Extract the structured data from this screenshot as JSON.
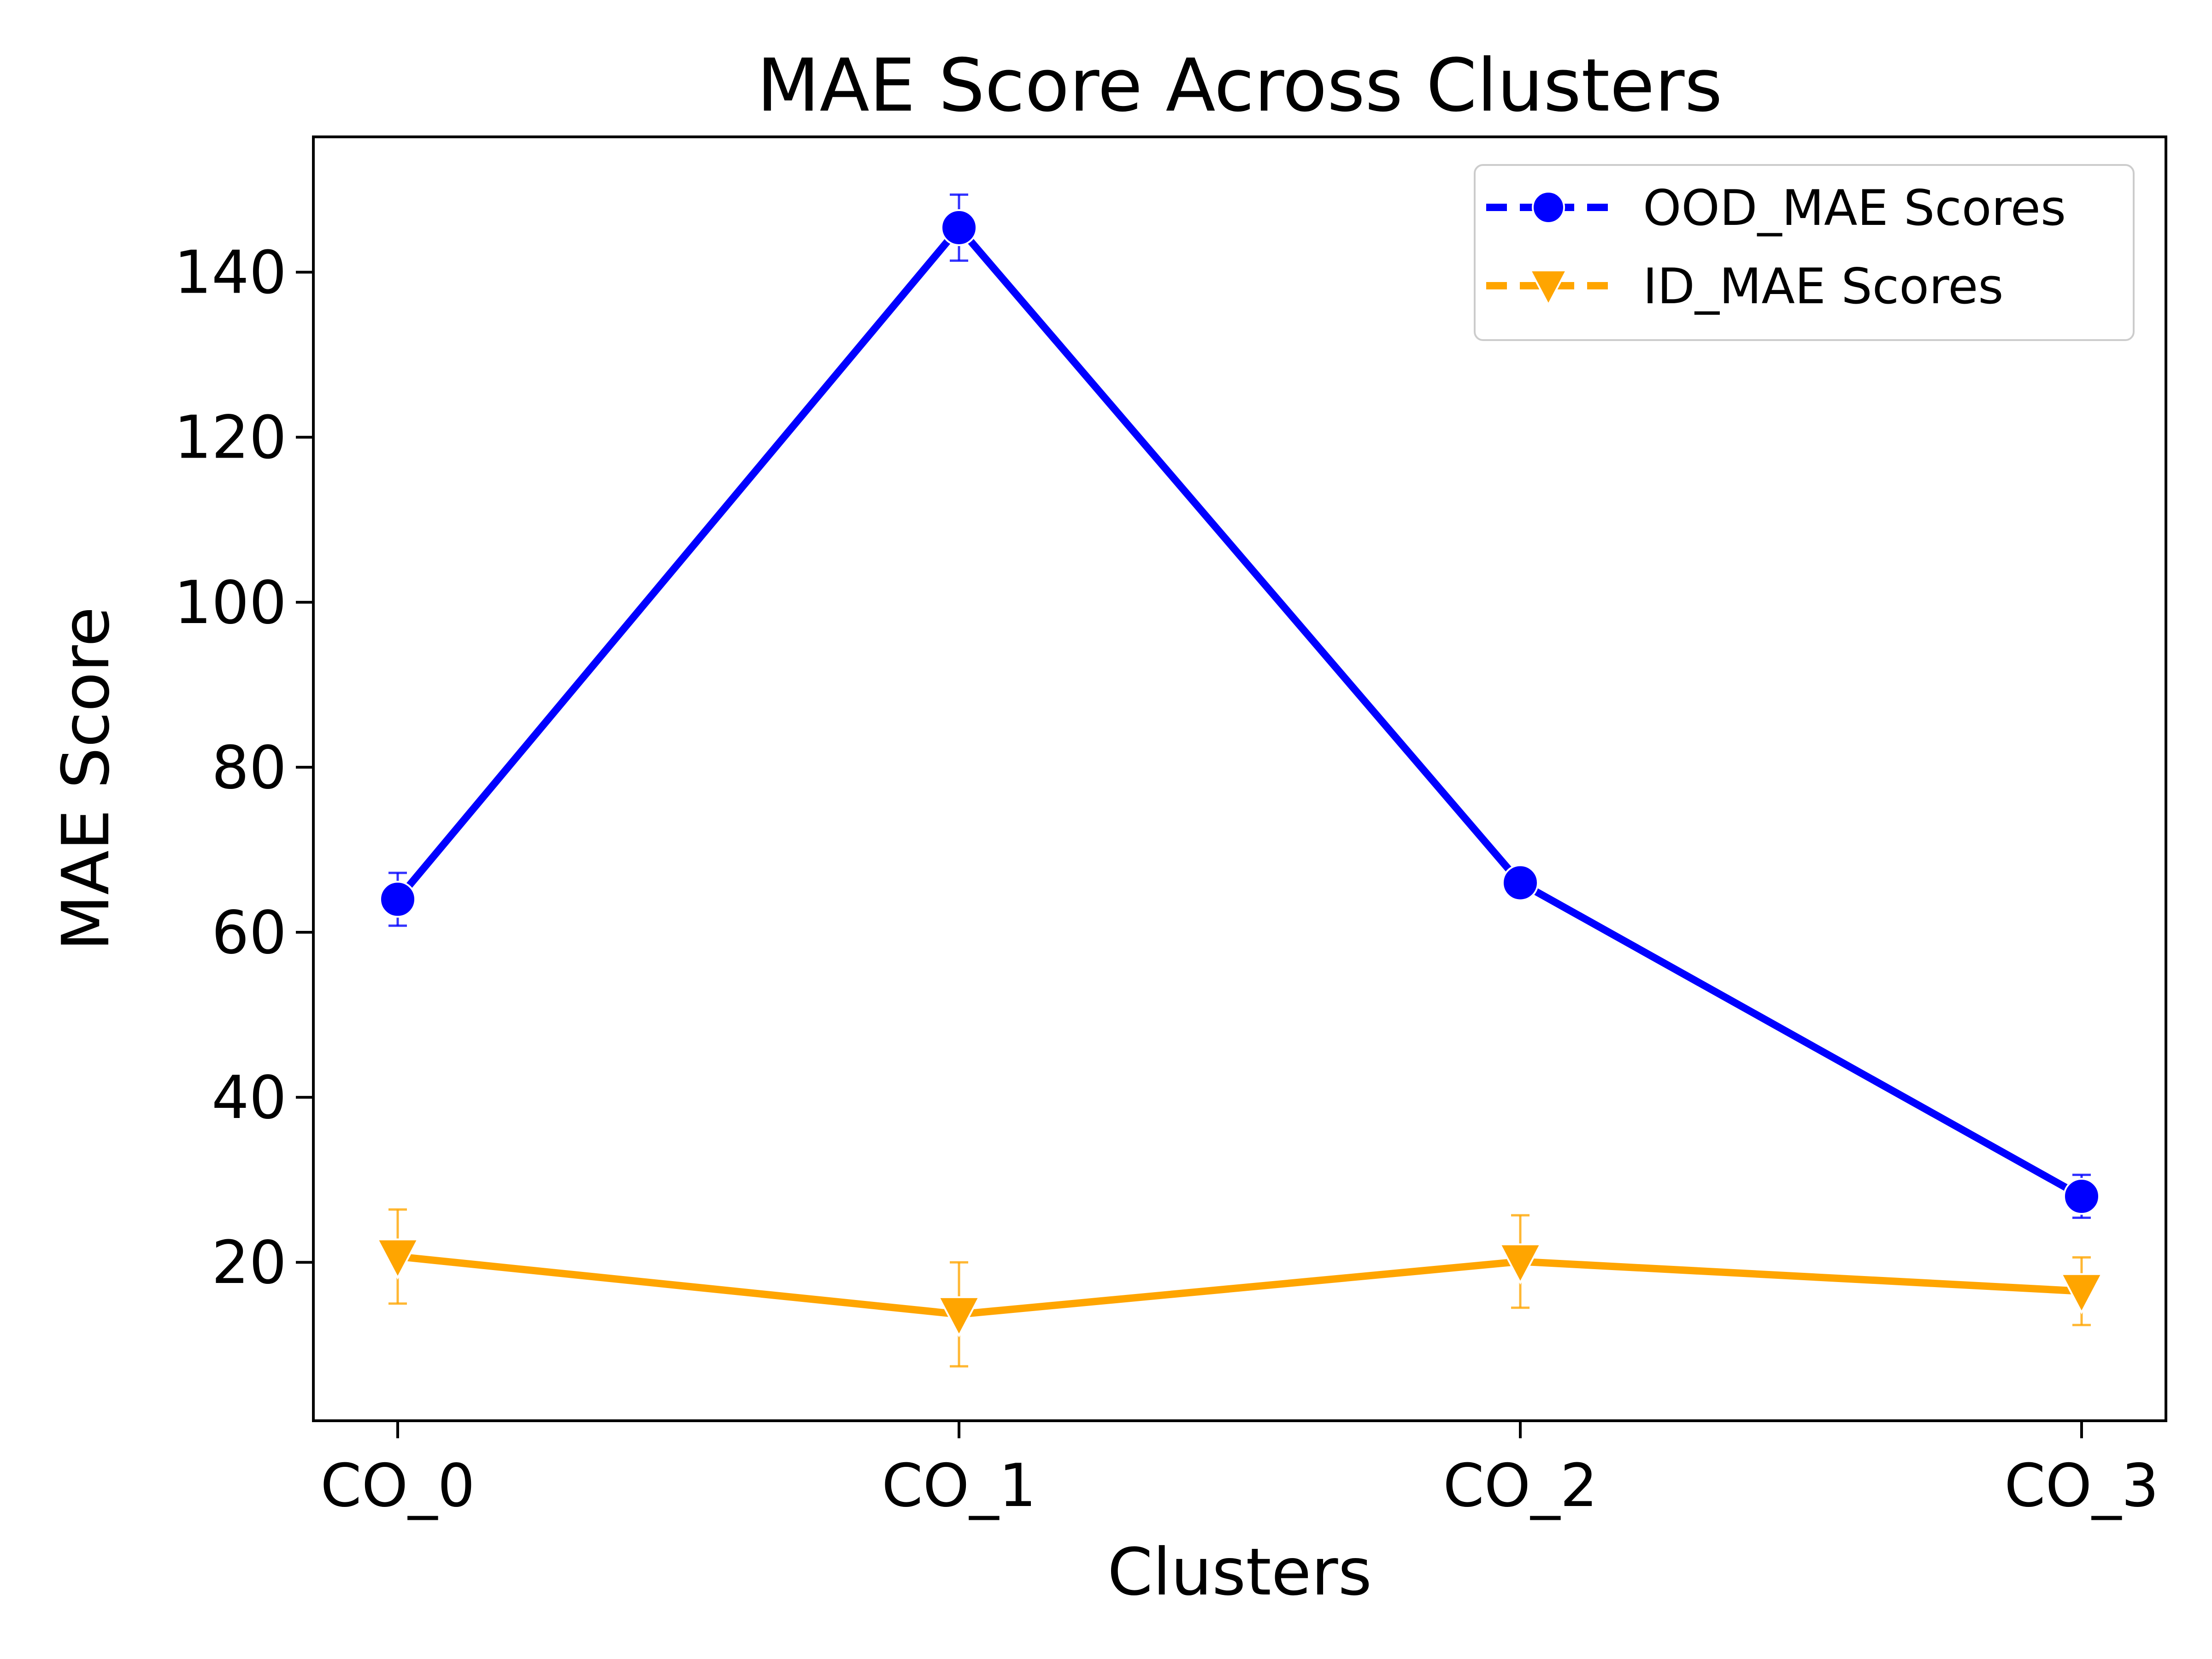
{
  "chart_data": {
    "type": "line",
    "title": "MAE Score Across Clusters",
    "xlabel": "Clusters",
    "ylabel": "MAE Score",
    "categories": [
      "CO_0",
      "CO_1",
      "CO_2",
      "CO_3"
    ],
    "ylim": [
      0.8,
      156.4
    ],
    "yticks": [
      20,
      40,
      60,
      80,
      100,
      120,
      140
    ],
    "grid": false,
    "legend_position": "top-right",
    "series": [
      {
        "name": "OOD_MAE Scores",
        "color": "#0000ff",
        "marker": "circle",
        "values": [
          64,
          145.4,
          66,
          28
        ],
        "errors": [
          3.2,
          4.0,
          0.8,
          2.6
        ]
      },
      {
        "name": "ID_MAE Scores",
        "color": "#ffa500",
        "marker": "triangle-down",
        "values": [
          20.7,
          13.7,
          20.1,
          16.5
        ],
        "errors": [
          5.7,
          6.3,
          5.6,
          4.1
        ]
      }
    ]
  }
}
